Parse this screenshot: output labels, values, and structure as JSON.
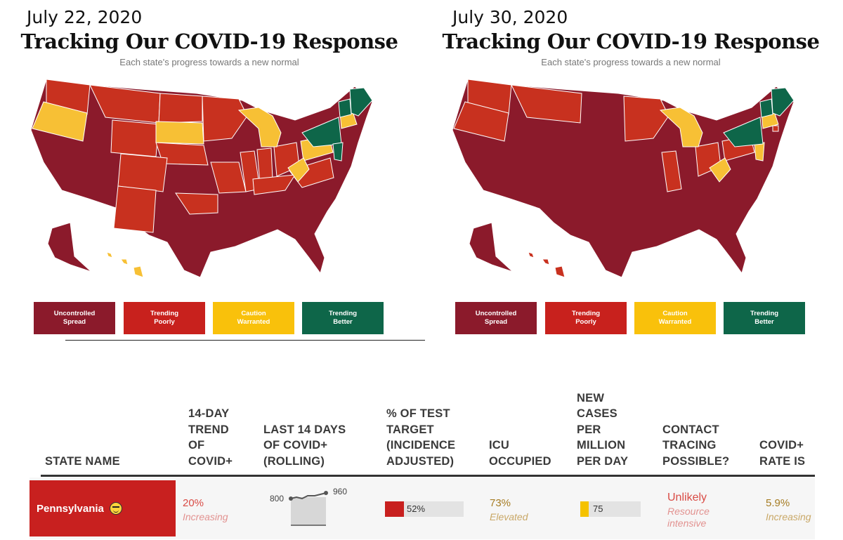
{
  "panels": [
    {
      "date": "July 22, 2020",
      "title": "Tracking Our COVID-19 Response",
      "subtitle": "Each state's progress towards a new normal",
      "legend": [
        {
          "label_line1": "Uncontrolled",
          "label_line2": "Spread",
          "color": "#8b1a2b"
        },
        {
          "label_line1": "Trending",
          "label_line2": "Poorly",
          "color": "#c8211d"
        },
        {
          "label_line1": "Caution",
          "label_line2": "Warranted",
          "color": "#f9c10b"
        },
        {
          "label_line1": "Trending",
          "label_line2": "Better",
          "color": "#0e6649"
        }
      ],
      "map_colors": {
        "main": "#8b1a2b",
        "poorly": "#c8311f",
        "caution": "#f7c035",
        "better": "#0e6649"
      }
    },
    {
      "date": "July 30, 2020",
      "title": "Tracking Our COVID-19 Response",
      "subtitle": "Each state's progress towards a new normal",
      "legend": [
        {
          "label_line1": "Uncontrolled",
          "label_line2": "Spread",
          "color": "#8b1a2b"
        },
        {
          "label_line1": "Trending",
          "label_line2": "Poorly",
          "color": "#c8211d"
        },
        {
          "label_line1": "Caution",
          "label_line2": "Warranted",
          "color": "#f9c10b"
        },
        {
          "label_line1": "Trending",
          "label_line2": "Better",
          "color": "#0e6649"
        }
      ],
      "map_colors": {
        "main": "#8b1a2b",
        "poorly": "#c8311f",
        "caution": "#f7c035",
        "better": "#0e6649"
      }
    }
  ],
  "table": {
    "headers": [
      {
        "lines": [
          "STATE NAME"
        ]
      },
      {
        "lines": [
          "14-DAY",
          "TREND",
          "OF",
          "COVID+"
        ]
      },
      {
        "lines": [
          "LAST 14 DAYS",
          "OF COVID+",
          "(ROLLING)"
        ]
      },
      {
        "lines": [
          "% OF TEST",
          "TARGET",
          "(INCIDENCE",
          "ADJUSTED)"
        ]
      },
      {
        "lines": [
          "ICU",
          "OCCUPIED"
        ]
      },
      {
        "lines": [
          "NEW",
          "CASES",
          "PER",
          "MILLION",
          "PER DAY"
        ]
      },
      {
        "lines": [
          "CONTACT",
          "TRACING",
          "POSSIBLE?"
        ]
      },
      {
        "lines": [
          "COVID+",
          "RATE IS"
        ]
      }
    ],
    "row": {
      "state": "Pennsylvania",
      "emoji_icon": "grimacing-face-icon",
      "trend_value": "20%",
      "trend_status": "Increasing",
      "sparkline": {
        "start_label": "800",
        "end_label": "960",
        "start": 800,
        "end": 960
      },
      "test_target_value": 52,
      "test_target_label": "52%",
      "icu_value": "73%",
      "icu_status": "Elevated",
      "new_cases_value": 75,
      "new_cases_label": "75",
      "contact_tracing": "Unlikely",
      "contact_tracing_note": [
        "Resource",
        "intensive"
      ],
      "rate_value": "5.9%",
      "rate_status": "Increasing",
      "colors": {
        "state_bg": "#c8201f",
        "test_fill": "#c8201f",
        "cases_fill": "#f5c200"
      }
    }
  }
}
